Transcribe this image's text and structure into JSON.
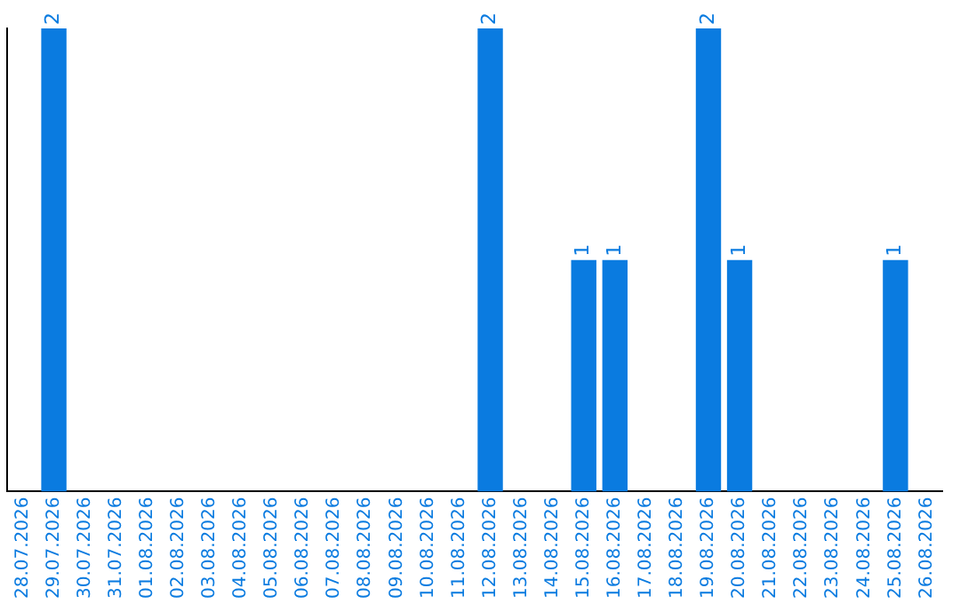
{
  "chart_data": {
    "type": "bar",
    "categories": [
      "28.07.2026",
      "29.07.2026",
      "30.07.2026",
      "31.07.2026",
      "01.08.2026",
      "02.08.2026",
      "03.08.2026",
      "04.08.2026",
      "05.08.2026",
      "06.08.2026",
      "07.08.2026",
      "08.08.2026",
      "09.08.2026",
      "10.08.2026",
      "11.08.2026",
      "12.08.2026",
      "13.08.2026",
      "14.08.2026",
      "15.08.2026",
      "16.08.2026",
      "17.08.2026",
      "18.08.2026",
      "19.08.2026",
      "20.08.2026",
      "21.08.2026",
      "22.08.2026",
      "23.08.2026",
      "24.08.2026",
      "25.08.2026",
      "26.08.2026"
    ],
    "values": [
      0,
      2,
      0,
      0,
      0,
      0,
      0,
      0,
      0,
      0,
      0,
      0,
      0,
      0,
      0,
      2,
      0,
      0,
      1,
      1,
      0,
      0,
      2,
      1,
      0,
      0,
      0,
      0,
      1,
      0
    ],
    "value_labels": [
      null,
      "2",
      null,
      null,
      null,
      null,
      null,
      null,
      null,
      null,
      null,
      null,
      null,
      null,
      null,
      "2",
      null,
      null,
      "1",
      "1",
      null,
      null,
      "2",
      "1",
      null,
      null,
      null,
      null,
      "1",
      null
    ],
    "color": "#0a7be0",
    "tick_labels": "x",
    "grid": false,
    "legend": false
  }
}
